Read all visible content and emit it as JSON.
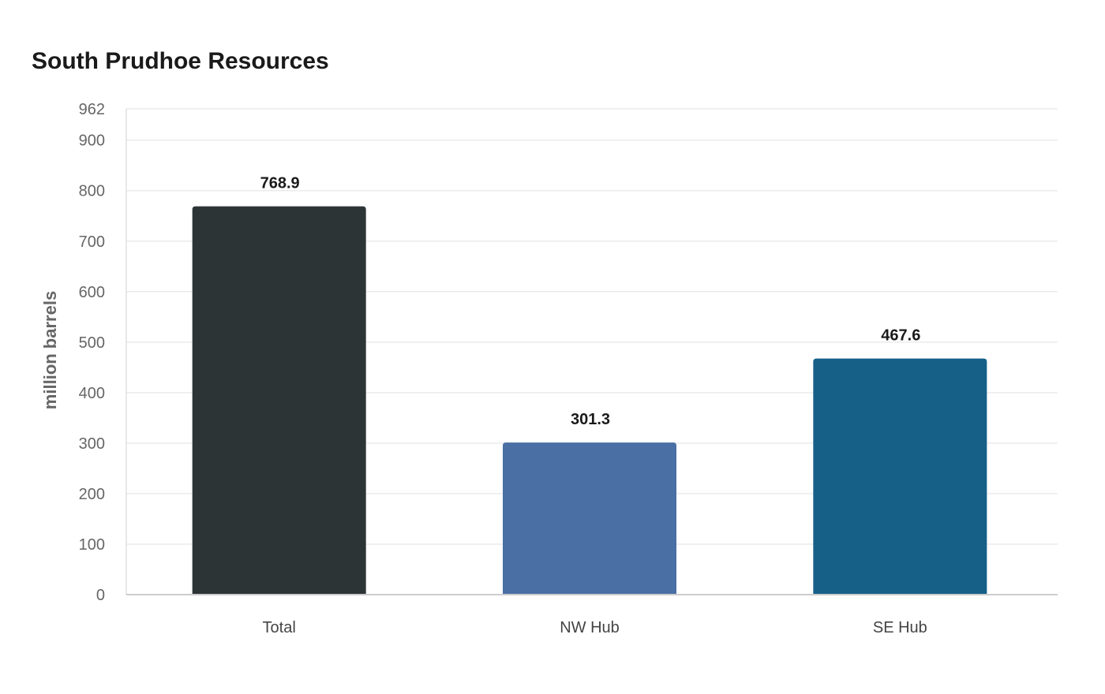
{
  "chart_data": {
    "type": "bar",
    "title": "South Prudhoe Resources",
    "xlabel": "",
    "ylabel": "million barrels",
    "categories": [
      "Total",
      "NW Hub",
      "SE Hub"
    ],
    "values": [
      768.9,
      301.3,
      467.6
    ],
    "value_labels": [
      "768.9",
      "301.3",
      "467.6"
    ],
    "colors": [
      "#2d3436",
      "#4a6fa5",
      "#166088"
    ],
    "ylim": [
      0,
      962
    ],
    "yticks": [
      0,
      100,
      200,
      300,
      400,
      500,
      600,
      700,
      800,
      900,
      962
    ],
    "grid": true,
    "legend": "none"
  }
}
